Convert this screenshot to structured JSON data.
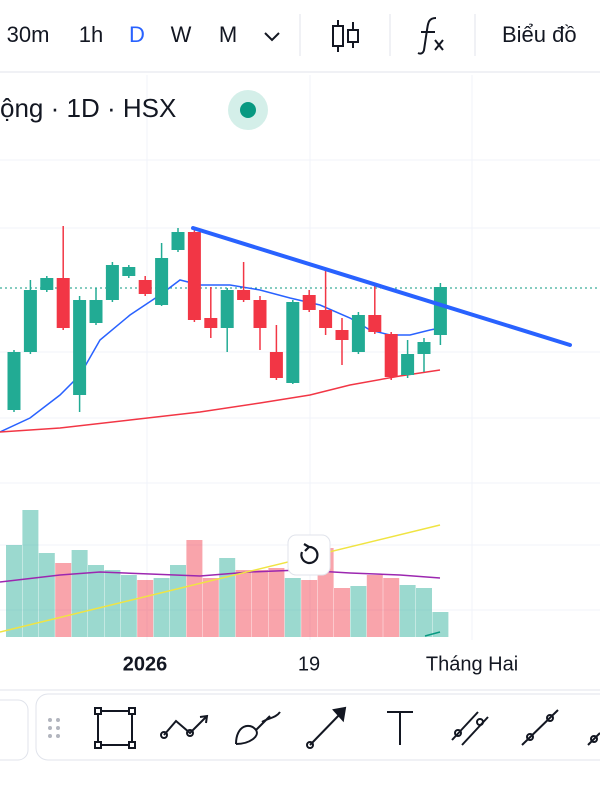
{
  "toolbar": {
    "intervals": [
      "30m",
      "1h",
      "D",
      "W",
      "M"
    ],
    "chart_label": "Biểu đồ"
  },
  "legend": "ộng · 1D · HSX",
  "chart_data": {
    "type": "candlestick",
    "open": [
      16,
      39.2,
      64,
      68.8,
      22,
      50.8,
      60,
      69.6,
      68,
      58,
      80,
      87.2,
      52.8,
      48.8,
      64,
      60,
      39.2,
      26.8,
      62,
      56,
      48,
      39.2,
      54,
      46.4,
      30,
      38.4,
      46
    ],
    "high": [
      40,
      68,
      69.6,
      89.6,
      61.6,
      64.8,
      75.2,
      74,
      69.6,
      82.8,
      88.8,
      88.8,
      65.2,
      64.8,
      75.2,
      61.6,
      50,
      60,
      64,
      72.8,
      52.8,
      55.2,
      66,
      47.2,
      44,
      44.8,
      66.8
    ],
    "low": [
      15.2,
      38.4,
      63.2,
      48,
      15.2,
      50,
      59.2,
      68.8,
      61.6,
      57.6,
      79.2,
      51.2,
      44.8,
      39.2,
      59.2,
      40,
      28,
      26.4,
      55.2,
      46,
      34,
      38.4,
      46.4,
      28,
      28.8,
      31.2,
      42
    ],
    "close": [
      39.2,
      64,
      68.8,
      48.8,
      60,
      60,
      74,
      73.2,
      62.4,
      76.8,
      87.2,
      52,
      48.8,
      64,
      60,
      48.8,
      28.8,
      59.2,
      56,
      48.8,
      44,
      54,
      47.2,
      29.2,
      38.4,
      43.2,
      65.2
    ],
    "volume": [
      92,
      127,
      84,
      74,
      87,
      72,
      67,
      62,
      57,
      59,
      72,
      97,
      59,
      79,
      67,
      67,
      69,
      59,
      57,
      89,
      49,
      51,
      62,
      59,
      52,
      49,
      25
    ],
    "ylim": [
      0,
      100
    ],
    "volume_lim": [
      0,
      140
    ],
    "up_color": "#22ab94",
    "down_color": "#f23645",
    "x_axis_labels": [
      "2026",
      "19",
      "Tháng Hai"
    ]
  }
}
